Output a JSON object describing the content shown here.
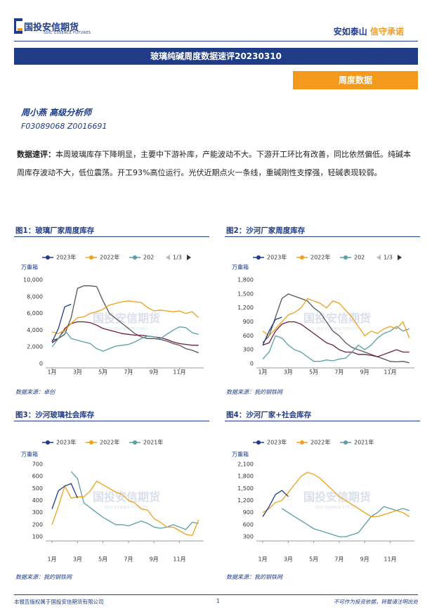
{
  "header": {
    "logo_cn": "国投安信期货",
    "logo_en": "SDIC ESSENCE FUTURES",
    "slogan_a": "安如泰山",
    "slogan_b": "信守承诺"
  },
  "title": "玻璃纯碱周度数据速评20230310",
  "tag": "周度数据",
  "author": {
    "name": "周小燕 高级分析师",
    "ids": "F03089068 Z0016691"
  },
  "summary": {
    "label": "数据速评：",
    "text": "本周玻璃库存下降明显，主要中下游补库，产能波动不大。下游开工环比有改善，同比依然偏低。纯碱本周库存波动不大，低位震荡。开工93%高位运行。光伏近期点火一条线，重碱刚性支撑强，轻碱表现较弱。"
  },
  "figures": [
    {
      "caption": "图1：玻璃厂家周度库存",
      "source": "数据来源：卓创"
    },
    {
      "caption": "图2：沙河厂家周度库存",
      "source": "数据来源：我的钢铁网"
    },
    {
      "caption": "图3：沙河玻璃社会库存",
      "source": "数据来源：我的钢铁网"
    },
    {
      "caption": "图4：沙河厂家+社会库存",
      "source": "数据来源：我的钢铁网"
    }
  ],
  "watermark": {
    "cn": "国投安信期货",
    "en": "SDIC ESSENCE FUTURES"
  },
  "chart_data": [
    {
      "type": "line",
      "y_label": "万重箱",
      "legend_pager": "1/3",
      "x": [
        1,
        1.5,
        2,
        2.5,
        3,
        3.5,
        4,
        4.5,
        5,
        5.5,
        6,
        6.5,
        7,
        7.5,
        8,
        8.5,
        9,
        9.5,
        10,
        10.5,
        11,
        11.5,
        12,
        12.5
      ],
      "xlim": [
        0.5,
        12.9
      ],
      "xticks": [
        {
          "value": 1,
          "label": "1月"
        },
        {
          "value": 3,
          "label": "3月"
        },
        {
          "value": 5,
          "label": "5月"
        },
        {
          "value": 7,
          "label": "7月"
        },
        {
          "value": 9,
          "label": "9月"
        },
        {
          "value": 11,
          "label": "11月"
        }
      ],
      "ylim": [
        0,
        10000
      ],
      "yticks": [
        0,
        {
          "value": 2000,
          "label": "2,000"
        },
        {
          "value": 4000,
          "label": "4,000"
        },
        {
          "value": 6000,
          "label": "6,000"
        },
        {
          "value": 8000,
          "label": "8,000"
        },
        {
          "value": 10000,
          "label": "10,000"
        }
      ],
      "series": [
        {
          "color": "#555555",
          "values": [
            2800,
            3000,
            3500,
            5500,
            9000,
            9300,
            9300,
            9200,
            7500,
            6000,
            5400,
            4800,
            4200,
            3600,
            3200,
            3000,
            3000,
            2900,
            2700,
            2400,
            2200,
            1800,
            1600,
            1300
          ]
        },
        {
          "color": "#6b1d3a",
          "values": [
            2500,
            3000,
            4200,
            4800,
            5000,
            5000,
            4900,
            4600,
            4200,
            4000,
            3800,
            3600,
            3500,
            3400,
            3400,
            3300,
            3200,
            3100,
            2900,
            2600,
            2400,
            2300,
            2200,
            2200
          ]
        },
        {
          "name": "202",
          "color": "#5b9ea6",
          "values": [
            2000,
            3000,
            4000,
            3000,
            2800,
            2600,
            2400,
            1800,
            1500,
            1800,
            2100,
            2200,
            2300,
            2600,
            3000,
            3300,
            3200,
            3000,
            3500,
            4000,
            4400,
            4300,
            3700,
            3500
          ]
        },
        {
          "name": "2022年",
          "color": "#f0a01c",
          "values": [
            3800,
            3600,
            4000,
            4800,
            5500,
            5600,
            6000,
            6200,
            6500,
            7000,
            7200,
            7400,
            7500,
            7400,
            7300,
            6700,
            6300,
            6400,
            6300,
            6200,
            6300,
            6000,
            6200,
            5500
          ]
        },
        {
          "name": "2023年",
          "color": "#1f3c88",
          "values": [
            2600,
            4200,
            6800,
            7100,
            null,
            null,
            null,
            null,
            null,
            null,
            null,
            null,
            null,
            null,
            null,
            null,
            null,
            null,
            null,
            null,
            null,
            null,
            null,
            null
          ]
        }
      ]
    },
    {
      "type": "line",
      "y_label": "万重箱",
      "legend_pager": "1/3",
      "x": [
        1,
        1.5,
        2,
        2.5,
        3,
        3.5,
        4,
        4.5,
        5,
        5.5,
        6,
        6.5,
        7,
        7.5,
        8,
        8.5,
        9,
        9.5,
        10,
        10.5,
        11,
        11.5,
        12,
        12.5
      ],
      "xlim": [
        0.5,
        12.9
      ],
      "xticks": [
        {
          "value": 1,
          "label": "1月"
        },
        {
          "value": 3,
          "label": "3月"
        },
        {
          "value": 5,
          "label": "5月"
        },
        {
          "value": 7,
          "label": "7月"
        },
        {
          "value": 9,
          "label": "9月"
        },
        {
          "value": 11,
          "label": "11月"
        }
      ],
      "ylim": [
        0,
        1800
      ],
      "yticks": [
        0,
        300,
        600,
        900,
        {
          "value": 1200,
          "label": "1,200"
        },
        {
          "value": 1500,
          "label": "1,500"
        },
        {
          "value": 1800,
          "label": "1,800"
        }
      ],
      "series": [
        {
          "color": "#555555",
          "values": [
            450,
            600,
            1000,
            1400,
            1500,
            1450,
            1400,
            1350,
            1200,
            1100,
            900,
            700,
            600,
            450,
            350,
            300,
            250,
            200,
            150,
            100,
            50,
            40,
            50,
            20
          ]
        },
        {
          "color": "#6b1d3a",
          "values": [
            400,
            450,
            700,
            850,
            900,
            900,
            850,
            750,
            650,
            550,
            450,
            400,
            300,
            250,
            250,
            200,
            200,
            180,
            150,
            200,
            250,
            300,
            250,
            250
          ]
        },
        {
          "name": "202",
          "color": "#5b9ea6",
          "values": [
            100,
            250,
            600,
            550,
            400,
            300,
            250,
            150,
            50,
            50,
            80,
            60,
            100,
            120,
            250,
            400,
            300,
            400,
            550,
            650,
            700,
            800,
            700,
            750
          ]
        },
        {
          "name": "2022年",
          "color": "#f0a01c",
          "values": [
            700,
            600,
            750,
            900,
            1050,
            1100,
            1200,
            1400,
            1350,
            1300,
            1200,
            1350,
            1300,
            1150,
            1000,
            800,
            600,
            700,
            650,
            750,
            800,
            750,
            900,
            550
          ]
        },
        {
          "name": "2023年",
          "color": "#1f3c88",
          "values": [
            400,
            700,
            950,
            1000,
            null,
            null,
            null,
            null,
            null,
            null,
            null,
            null,
            null,
            null,
            null,
            null,
            null,
            null,
            null,
            null,
            null,
            null,
            null,
            null
          ]
        }
      ]
    },
    {
      "type": "line",
      "y_label": "万重箱",
      "x": [
        1,
        1.5,
        2,
        2.5,
        3,
        3.5,
        4,
        4.5,
        5,
        5.5,
        6,
        6.5,
        7,
        7.5,
        8,
        8.5,
        9,
        9.5,
        10,
        10.5,
        11,
        11.5,
        12,
        12.5
      ],
      "xlim": [
        0.5,
        12.9
      ],
      "xticks": [
        {
          "value": 1,
          "label": "1月"
        },
        {
          "value": 3,
          "label": "3月"
        },
        {
          "value": 5,
          "label": "5月"
        },
        {
          "value": 7,
          "label": "7月"
        },
        {
          "value": 9,
          "label": "9月"
        },
        {
          "value": 11,
          "label": "11月"
        }
      ],
      "ylim": [
        100,
        700
      ],
      "yticks": [
        100,
        200,
        300,
        400,
        500,
        600,
        700
      ],
      "series": [
        {
          "name": "2021年",
          "color": "#5b9ea6",
          "values": [
            null,
            null,
            null,
            640,
            580,
            380,
            340,
            300,
            260,
            230,
            200,
            200,
            190,
            210,
            230,
            210,
            180,
            170,
            180,
            200,
            180,
            160,
            220,
            210
          ]
        },
        {
          "name": "2022年",
          "color": "#f0a01c",
          "values": [
            200,
            350,
            520,
            420,
            430,
            430,
            480,
            560,
            530,
            500,
            470,
            450,
            400,
            380,
            330,
            320,
            250,
            220,
            180,
            180,
            150,
            120,
            110,
            240
          ]
        },
        {
          "name": "2023年",
          "color": "#1f3c88",
          "values": [
            330,
            480,
            520,
            540,
            420,
            null,
            null,
            null,
            null,
            null,
            null,
            null,
            null,
            null,
            null,
            null,
            null,
            null,
            null,
            null,
            null,
            null,
            null,
            null
          ]
        }
      ]
    },
    {
      "type": "line",
      "y_label": "万重箱",
      "x": [
        1,
        1.5,
        2,
        2.5,
        3,
        3.5,
        4,
        4.5,
        5,
        5.5,
        6,
        6.5,
        7,
        7.5,
        8,
        8.5,
        9,
        9.5,
        10,
        10.5,
        11,
        11.5,
        12,
        12.5
      ],
      "xlim": [
        0.5,
        12.9
      ],
      "xticks": [
        {
          "value": 1,
          "label": "1月"
        },
        {
          "value": 3,
          "label": "3月"
        },
        {
          "value": 5,
          "label": "5月"
        },
        {
          "value": 7,
          "label": "7月"
        },
        {
          "value": 9,
          "label": "9月"
        },
        {
          "value": 11,
          "label": "11月"
        }
      ],
      "ylim": [
        300,
        2100
      ],
      "yticks": [
        300,
        600,
        900,
        {
          "value": 1200,
          "label": "1,200"
        },
        {
          "value": 1500,
          "label": "1,500"
        },
        {
          "value": 1800,
          "label": "1,800"
        },
        {
          "value": 2100,
          "label": "2,100"
        }
      ],
      "series": [
        {
          "name": "2021年",
          "color": "#5b9ea6",
          "values": [
            null,
            null,
            null,
            1000,
            900,
            800,
            700,
            600,
            500,
            450,
            400,
            350,
            300,
            300,
            350,
            400,
            600,
            800,
            900,
            1050,
            1000,
            950,
            1000,
            950
          ]
        },
        {
          "name": "2022年",
          "color": "#f0a01c",
          "values": [
            900,
            1000,
            1150,
            1200,
            1400,
            1600,
            1800,
            1900,
            1850,
            1750,
            1600,
            1450,
            1300,
            1200,
            1100,
            1000,
            900,
            800,
            800,
            850,
            900,
            950,
            900,
            800
          ]
        },
        {
          "name": "2023年",
          "color": "#1f3c88",
          "values": [
            800,
            1050,
            1350,
            1450,
            1300,
            null,
            null,
            null,
            null,
            null,
            null,
            null,
            null,
            null,
            null,
            null,
            null,
            null,
            null,
            null,
            null,
            null,
            null,
            null
          ]
        }
      ]
    }
  ],
  "footer": {
    "left": "本报告版权属于国投安信期货有限公司",
    "page": "1",
    "right": "不可作为投资依据，转载请注明出处"
  }
}
